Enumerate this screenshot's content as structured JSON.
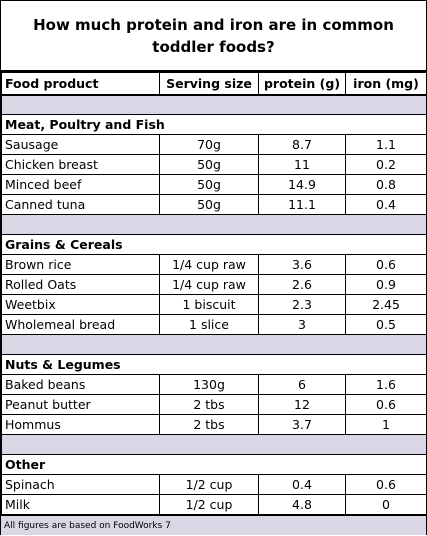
{
  "title": "How much protein and iron are in common toddler foods?",
  "headers": {
    "food": "Food product",
    "serving": "Serving size",
    "protein": "protein (g)",
    "iron": "iron (mg)"
  },
  "sections": [
    {
      "name": "Meat, Poultry and Fish",
      "rows": [
        {
          "food": "Sausage",
          "serving": "70g",
          "protein": "8.7",
          "iron": "1.1"
        },
        {
          "food": "Chicken breast",
          "serving": "50g",
          "protein": "11",
          "iron": "0.2"
        },
        {
          "food": "Minced beef",
          "serving": "50g",
          "protein": "14.9",
          "iron": "0.8"
        },
        {
          "food": "Canned tuna",
          "serving": "50g",
          "protein": "11.1",
          "iron": "0.4"
        }
      ]
    },
    {
      "name": "Grains  & Cereals",
      "rows": [
        {
          "food": "Brown rice",
          "serving": "1/4 cup raw",
          "protein": "3.6",
          "iron": "0.6"
        },
        {
          "food": "Rolled Oats",
          "serving": "1/4 cup raw",
          "protein": "2.6",
          "iron": "0.9"
        },
        {
          "food": "Weetbix",
          "serving": "1 biscuit",
          "protein": "2.3",
          "iron": "2.45"
        },
        {
          "food": "Wholemeal bread",
          "serving": "1 slice",
          "protein": "3",
          "iron": "0.5"
        }
      ]
    },
    {
      "name": "Nuts & Legumes",
      "rows": [
        {
          "food": "Baked beans",
          "serving": "130g",
          "protein": "6",
          "iron": "1.6"
        },
        {
          "food": "Peanut butter",
          "serving": "2 tbs",
          "protein": "12",
          "iron": "0.6"
        },
        {
          "food": "Hommus",
          "serving": "2 tbs",
          "protein": "3.7",
          "iron": "1"
        }
      ]
    },
    {
      "name": "Other",
      "rows": [
        {
          "food": "Spinach",
          "serving": "1/2 cup",
          "protein": "0.4",
          "iron": "0.6"
        },
        {
          "food": "Milk",
          "serving": "1/2 cup",
          "protein": "4.8",
          "iron": "0"
        }
      ]
    }
  ],
  "footer": "All figures are based on FoodWorks 7",
  "colors": {
    "gap_band": "#d9d7e5"
  }
}
